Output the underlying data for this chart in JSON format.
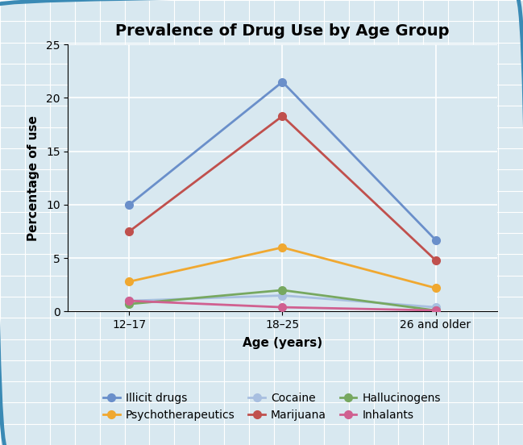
{
  "title": "Prevalence of Drug Use by Age Group",
  "xlabel": "Age (years)",
  "ylabel": "Percentage of use",
  "x_labels": [
    "12–17",
    "18–25",
    "26 and older"
  ],
  "x_positions": [
    0,
    1,
    2
  ],
  "ylim": [
    0,
    25
  ],
  "yticks": [
    0,
    5,
    10,
    15,
    20,
    25
  ],
  "series": [
    {
      "label": "Illicit drugs",
      "values": [
        10.0,
        21.5,
        6.7
      ],
      "color": "#6a8fca",
      "marker": "o"
    },
    {
      "label": "Psychotherapeutics",
      "values": [
        2.8,
        6.0,
        2.2
      ],
      "color": "#f0a830",
      "marker": "o"
    },
    {
      "label": "Cocaine",
      "values": [
        1.0,
        1.5,
        0.4
      ],
      "color": "#a8bfe0",
      "marker": "o"
    },
    {
      "label": "Marijuana",
      "values": [
        7.5,
        18.3,
        4.8
      ],
      "color": "#c0504d",
      "marker": "o"
    },
    {
      "label": "Hallucinogens",
      "values": [
        0.7,
        2.0,
        0.1
      ],
      "color": "#77a860",
      "marker": "o"
    },
    {
      "label": "Inhalants",
      "values": [
        1.0,
        0.4,
        0.1
      ],
      "color": "#d06090",
      "marker": "o"
    }
  ],
  "background_color": "#d8e8f0",
  "grid_color": "#ffffff",
  "border_color": "#3a8ab5",
  "title_fontsize": 14,
  "axis_label_fontsize": 11,
  "tick_fontsize": 10,
  "legend_fontsize": 10,
  "line_width": 2.0,
  "marker_size": 7
}
